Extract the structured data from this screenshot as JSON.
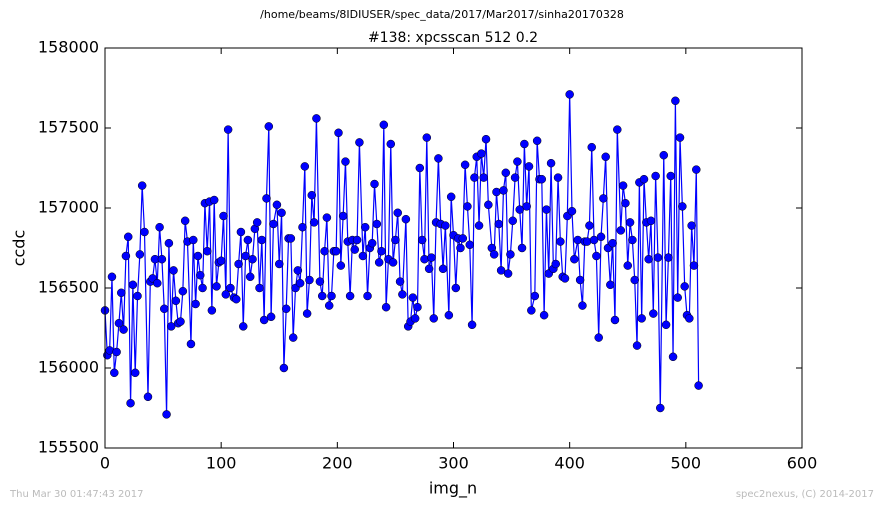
{
  "chart_data": {
    "type": "line",
    "header": "/home/beams/8IDIUSER/spec_data/2017/Mar2017/sinha20170328",
    "title": "#138: xpcsscan 512 0.2",
    "xlabel": "img_n",
    "ylabel": "ccdc",
    "footer_left": "Thu Mar 30 01:47:43 2017",
    "footer_right": "spec2nexus, (C) 2014-2017",
    "xlim": [
      0,
      600
    ],
    "xticks": [
      0,
      100,
      200,
      300,
      400,
      500,
      600
    ],
    "ylim": [
      155500,
      158000
    ],
    "yticks": [
      155500,
      156000,
      156500,
      157000,
      157500,
      158000
    ],
    "grid": false,
    "x": [
      0,
      2,
      4,
      6,
      8,
      10,
      12,
      14,
      16,
      18,
      20,
      22,
      24,
      26,
      28,
      30,
      32,
      34,
      37,
      39,
      41,
      43,
      45,
      47,
      49,
      51,
      53,
      55,
      57,
      59,
      61,
      63,
      65,
      67,
      69,
      71,
      74,
      76,
      78,
      80,
      82,
      84,
      86,
      88,
      90,
      92,
      94,
      96,
      98,
      100,
      102,
      104,
      106,
      108,
      111,
      113,
      115,
      117,
      119,
      121,
      123,
      125,
      127,
      129,
      131,
      133,
      135,
      137,
      139,
      141,
      143,
      145,
      148,
      150,
      152,
      154,
      156,
      158,
      160,
      162,
      164,
      166,
      168,
      170,
      172,
      174,
      176,
      178,
      180,
      182,
      185,
      187,
      189,
      191,
      193,
      195,
      197,
      199,
      201,
      203,
      205,
      207,
      209,
      211,
      213,
      215,
      217,
      219,
      222,
      224,
      226,
      228,
      230,
      232,
      234,
      236,
      238,
      240,
      242,
      244,
      246,
      248,
      250,
      252,
      254,
      256,
      259,
      261,
      263,
      265,
      267,
      269,
      271,
      273,
      275,
      277,
      279,
      281,
      283,
      285,
      287,
      289,
      291,
      293,
      296,
      298,
      300,
      302,
      304,
      306,
      308,
      310,
      312,
      314,
      316,
      318,
      320,
      322,
      324,
      326,
      328,
      330,
      333,
      335,
      337,
      339,
      341,
      343,
      345,
      347,
      349,
      351,
      353,
      355,
      357,
      359,
      361,
      363,
      365,
      367,
      370,
      372,
      374,
      376,
      378,
      380,
      382,
      384,
      386,
      388,
      390,
      392,
      394,
      396,
      398,
      400,
      402,
      404,
      407,
      409,
      411,
      413,
      415,
      417,
      419,
      421,
      423,
      425,
      427,
      429,
      431,
      433,
      435,
      437,
      439,
      441,
      444,
      446,
      448,
      450,
      452,
      454,
      456,
      458,
      460,
      462,
      464,
      466,
      468,
      470,
      472,
      474,
      476,
      478,
      481,
      483,
      485,
      487,
      489,
      491,
      493,
      495,
      497,
      499,
      501,
      503,
      505,
      507,
      509,
      511
    ],
    "series": [
      {
        "name": "ccdc",
        "color": "#0000ff",
        "values": [
          156360,
          156080,
          156110,
          156570,
          155970,
          156100,
          156280,
          156470,
          156240,
          156700,
          156820,
          155780,
          156520,
          155970,
          156450,
          156710,
          157140,
          156850,
          155820,
          156540,
          156560,
          156680,
          156530,
          156880,
          156680,
          156370,
          155710,
          156780,
          156260,
          156610,
          156420,
          156280,
          156290,
          156480,
          156920,
          156790,
          156150,
          156800,
          156400,
          156700,
          156580,
          156500,
          157030,
          156730,
          157040,
          156360,
          157050,
          156510,
          156660,
          156670,
          156950,
          156460,
          157490,
          156500,
          156440,
          156430,
          156650,
          156850,
          156260,
          156700,
          156800,
          156570,
          156680,
          156870,
          156910,
          156500,
          156800,
          156300,
          157060,
          157510,
          156320,
          156900,
          157020,
          156650,
          156970,
          156000,
          156370,
          156810,
          156810,
          156190,
          156500,
          156610,
          156530,
          156880,
          157260,
          156340,
          156550,
          157080,
          156910,
          157560,
          156540,
          156450,
          156730,
          156940,
          156390,
          156450,
          156730,
          156730,
          157470,
          156640,
          156950,
          157290,
          156790,
          156450,
          156800,
          156740,
          156800,
          157410,
          156700,
          156880,
          156450,
          156750,
          156780,
          157150,
          156900,
          156660,
          156730,
          157520,
          156380,
          156680,
          157400,
          156660,
          156800,
          156970,
          156540,
          156460,
          156930,
          156260,
          156290,
          156440,
          156310,
          156380,
          157250,
          156800,
          156680,
          157440,
          156620,
          156690,
          156310,
          156910,
          157310,
          156900,
          156620,
          156890,
          156330,
          157070,
          156830,
          156500,
          156810,
          156750,
          156810,
          157270,
          157010,
          156770,
          156270,
          157190,
          157320,
          156890,
          157340,
          157190,
          157430,
          157020,
          156750,
          156710,
          157100,
          156900,
          156610,
          157110,
          157220,
          156590,
          156710,
          156920,
          157190,
          157290,
          156990,
          156750,
          157400,
          157010,
          157260,
          156360,
          156450,
          157420,
          157180,
          157180,
          156330,
          156990,
          156590,
          157280,
          156620,
          156650,
          157190,
          156790,
          156570,
          156560,
          156950,
          157710,
          156980,
          156680,
          156800,
          156550,
          156390,
          156790,
          156790,
          156890,
          157380,
          156800,
          156700,
          156190,
          156820,
          157060,
          157320,
          156750,
          156520,
          156780,
          156300,
          157490,
          156860,
          157140,
          157030,
          156640,
          156910,
          156800,
          156550,
          156140,
          157160,
          156310,
          157180,
          156910,
          156680,
          156920,
          156340,
          157200,
          156690,
          155750,
          157330,
          156270,
          156690,
          157200,
          156070,
          157670,
          156440,
          157440,
          157010,
          156510,
          156330,
          156310,
          156890,
          156640,
          157240,
          155890
        ]
      }
    ]
  }
}
